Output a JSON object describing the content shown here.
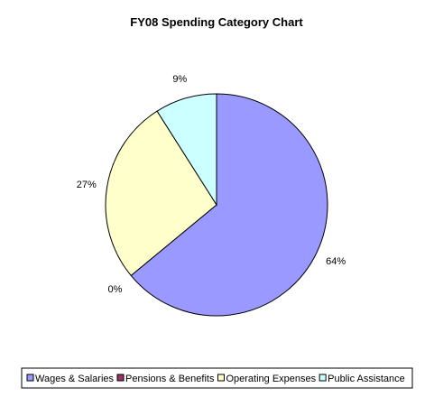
{
  "chart_data": {
    "type": "pie",
    "title": "FY08 Spending Category Chart",
    "categories": [
      "Wages & Salaries",
      "Pensions & Benefits",
      "Operating Expenses",
      "Public Assistance"
    ],
    "values": [
      64,
      0,
      27,
      9
    ],
    "labels": [
      "64%",
      "0%",
      "27%",
      "9%"
    ],
    "colors": [
      "#9999ff",
      "#993366",
      "#ffffcc",
      "#ccffff"
    ],
    "start": "12 o'clock",
    "direction": "clockwise",
    "legend_position": "bottom"
  }
}
